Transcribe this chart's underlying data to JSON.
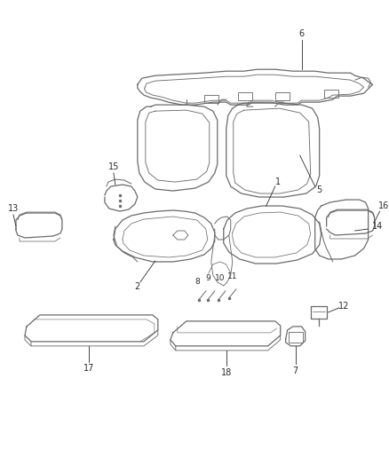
{
  "background_color": "#ffffff",
  "line_color": "#6a6a6a",
  "lw": 0.9,
  "figsize": [
    4.38,
    5.33
  ],
  "dpi": 100,
  "text_color": "#2a2a2a",
  "fs": 7.0
}
